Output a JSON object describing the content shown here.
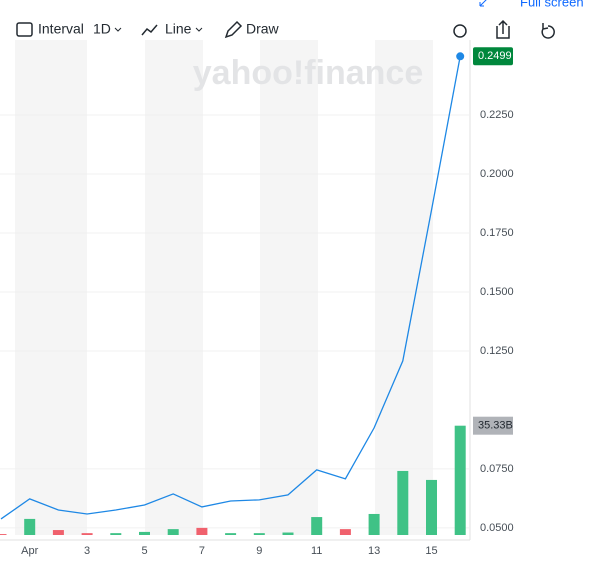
{
  "toolbar": {
    "interval": "Interval",
    "interval_value": "1D",
    "chart_style": "Line",
    "draw": "Draw",
    "full_screen": "Full screen"
  },
  "watermark": "yahoo!finance",
  "chart_data": {
    "type": "line",
    "categories": [
      null,
      "Apr",
      null,
      "3",
      null,
      "5",
      null,
      "7",
      null,
      "9",
      null,
      "11",
      null,
      "13",
      null,
      "15",
      null
    ],
    "series": [
      {
        "color": "#1e88e5",
        "values": [
          0.0538,
          0.0623,
          0.0576,
          0.0559,
          0.0576,
          0.0597,
          0.0644,
          0.0589,
          0.0614,
          0.0619,
          0.064,
          0.0746,
          0.0708,
          0.0924,
          0.1208,
          0.1847,
          0.2499
        ]
      },
      {
        "type": "bar",
        "axis": "y2",
        "colors": [
          "#f0616d",
          "#3fc286",
          "#f0616d",
          "#f0616d",
          "#3fc286",
          "#3fc286",
          "#3fc286",
          "#f0616d",
          "#3fc286",
          "#3fc286",
          "#3fc286",
          "#3fc286",
          "#f0616d",
          "#3fc286",
          "#3fc286",
          "#3fc286",
          "#3fc286"
        ],
        "values": [
          0.3,
          5.2,
          1.6,
          0.6,
          0.6,
          1.0,
          1.9,
          2.3,
          0.6,
          0.6,
          0.8,
          5.8,
          1.9,
          6.8,
          20.7,
          17.8,
          35.33
        ],
        "value_labels": [
          null,
          null,
          null,
          null,
          null,
          null,
          null,
          null,
          null,
          null,
          null,
          null,
          null,
          null,
          null,
          null,
          "35.33B"
        ]
      }
    ],
    "ylim": [
      0.047,
      0.2568
    ],
    "yticks": [
      {
        "value": 0.05,
        "label": "0.0500"
      },
      {
        "value": 0.075,
        "label": "0.0750"
      },
      {
        "value": 0.125,
        "label": "0.1250"
      },
      {
        "value": 0.15,
        "label": "0.1500"
      },
      {
        "value": 0.175,
        "label": "0.1750"
      },
      {
        "value": 0.2,
        "label": "0.2000"
      },
      {
        "value": 0.225,
        "label": "0.2250"
      }
    ],
    "y2lim": [
      0,
      160
    ],
    "grid": true
  }
}
